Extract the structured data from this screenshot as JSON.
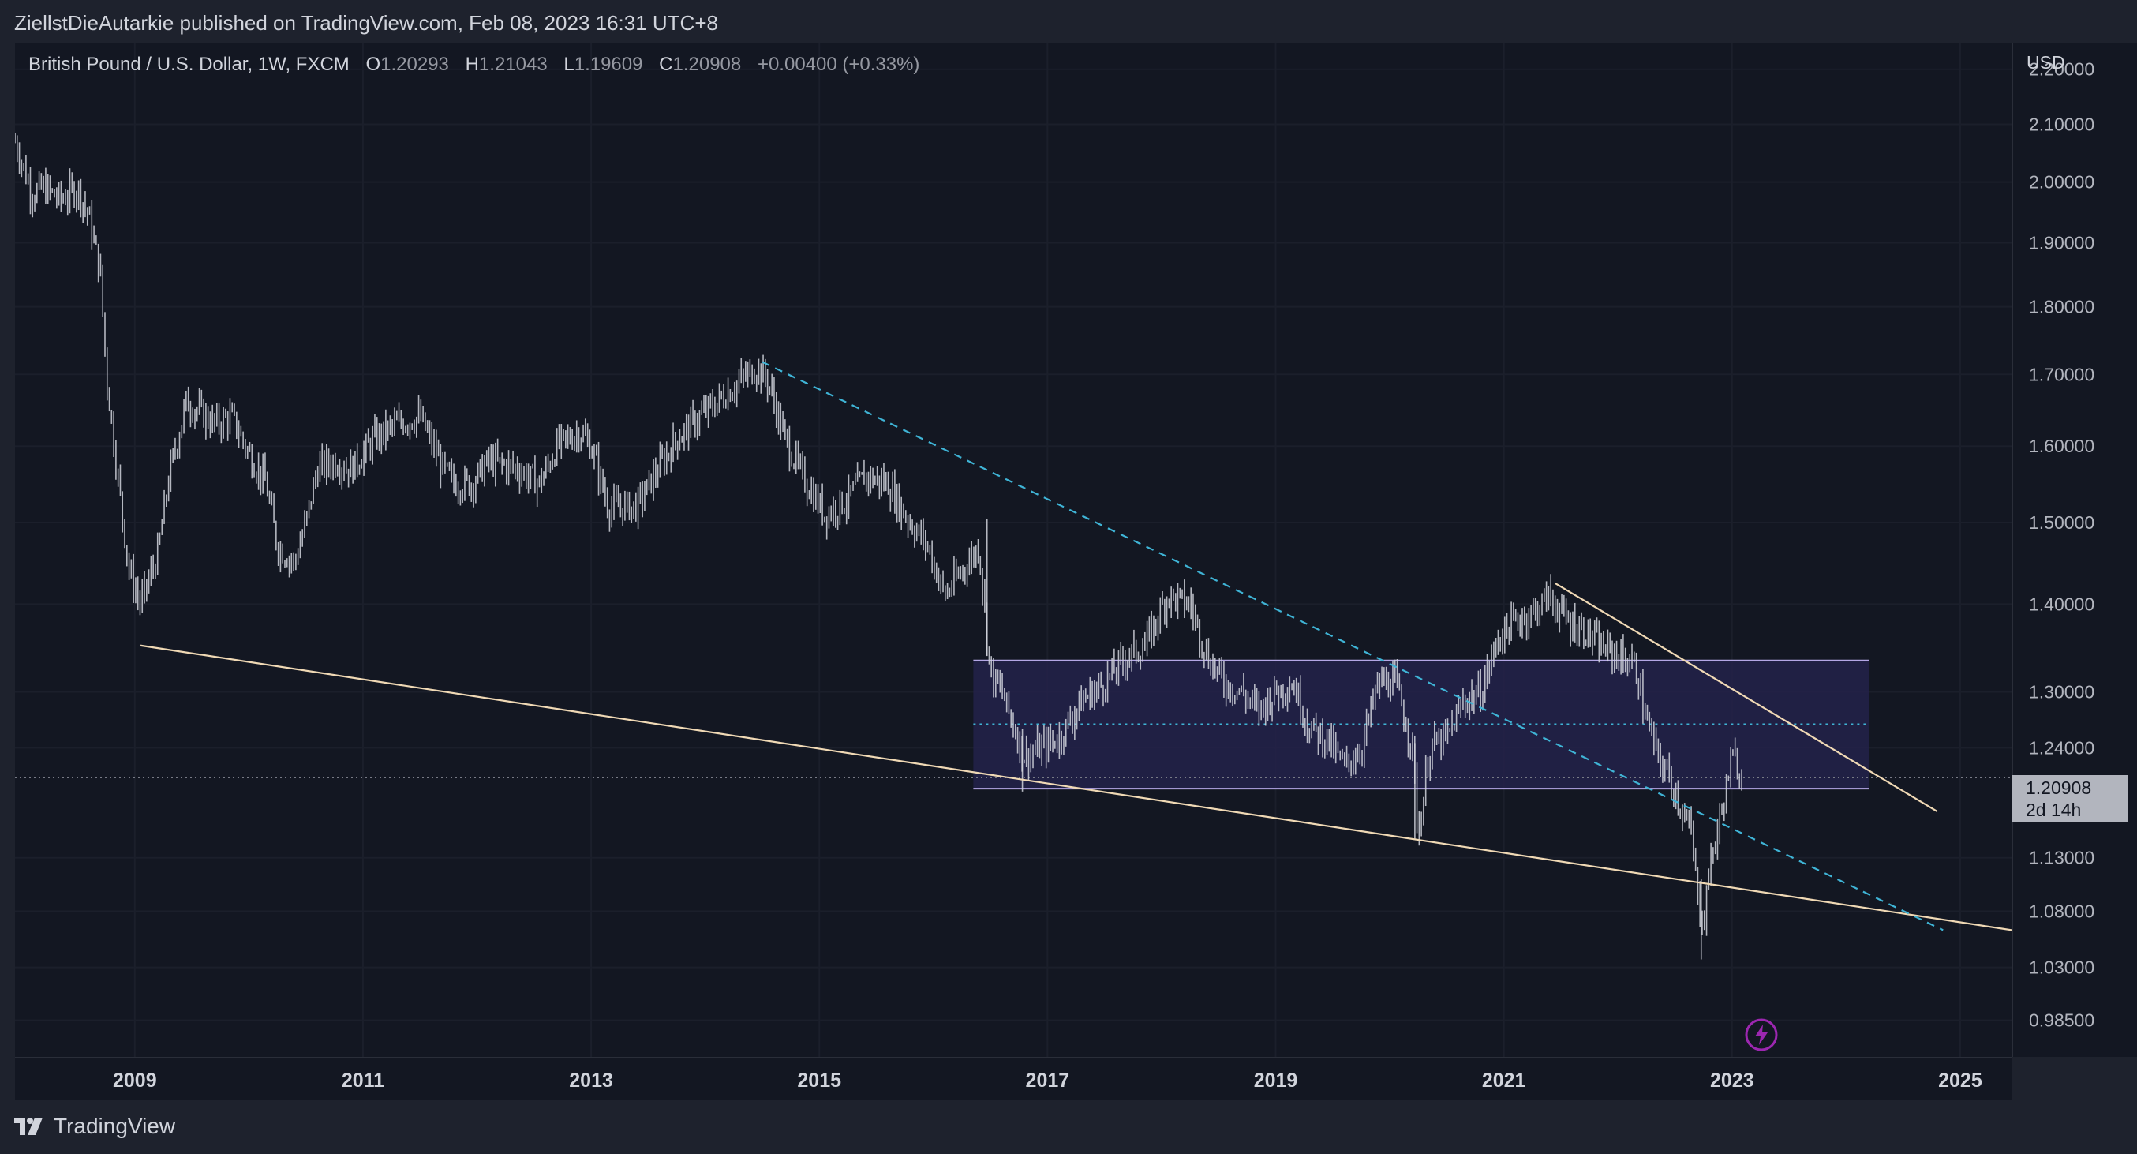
{
  "header": {
    "publisher_line": "ZiellstDieAutarkie published on TradingView.com, Feb 08, 2023 16:31 UTC+8"
  },
  "legend": {
    "symbol": "British Pound / U.S. Dollar, 1W, FXCM",
    "open_label": "O",
    "open": "1.20293",
    "high_label": "H",
    "high": "1.21043",
    "low_label": "L",
    "low": "1.19609",
    "close_label": "C",
    "close": "1.20908",
    "change": "+0.00400 (+0.33%)"
  },
  "price_axis": {
    "currency": "USD",
    "last_price": "1.20908",
    "countdown": "2d 14h"
  },
  "footer": {
    "brand": "TradingView",
    "brand_icon": "tradingview-logo-icon"
  },
  "colors": {
    "background": "#131722",
    "candle": "#d1d4dc",
    "trendline": "#f0d9b5",
    "dashed_trendline": "#3fb4d6",
    "range_box_fill": "#23224a",
    "range_box_border": "#b4a7e6",
    "range_mid": "#3fb4d6"
  },
  "chart_data": {
    "type": "line",
    "scale": "log",
    "xlim": [
      2007.95,
      2025.45
    ],
    "ylim": [
      0.955,
      2.25
    ],
    "x_ticks": [
      "2009",
      "2011",
      "2013",
      "2015",
      "2017",
      "2019",
      "2021",
      "2023",
      "2025"
    ],
    "y_ticks": [
      "2.20000",
      "2.10000",
      "2.00000",
      "1.90000",
      "1.80000",
      "1.70000",
      "1.60000",
      "1.50000",
      "1.40000",
      "1.30000",
      "1.24000",
      "1.13000",
      "1.08000",
      "1.03000",
      "0.98500"
    ],
    "last_price": 1.20908,
    "series": [
      {
        "style": "weekly-bars",
        "x": [
          2007.95,
          2008.1,
          2008.2,
          2008.35,
          2008.5,
          2008.6,
          2008.7,
          2008.75,
          2008.85,
          2008.95,
          2009.05,
          2009.2,
          2009.3,
          2009.45,
          2009.55,
          2009.7,
          2009.85,
          2010.0,
          2010.15,
          2010.25,
          2010.4,
          2010.5,
          2010.6,
          2010.75,
          2010.9,
          2011.1,
          2011.3,
          2011.5,
          2011.7,
          2011.8,
          2011.95,
          2012.1,
          2012.35,
          2012.55,
          2012.7,
          2012.9,
          2013.0,
          2013.15,
          2013.4,
          2013.55,
          2013.75,
          2013.95,
          2014.1,
          2014.3,
          2014.45,
          2014.55,
          2014.7,
          2014.85,
          2015.05,
          2015.25,
          2015.4,
          2015.6,
          2015.75,
          2015.95,
          2016.1,
          2016.25,
          2016.4,
          2016.5,
          2016.6,
          2016.8,
          2016.95,
          2017.1,
          2017.3,
          2017.5,
          2017.7,
          2017.85,
          2018.05,
          2018.25,
          2018.4,
          2018.55,
          2018.7,
          2018.85,
          2019.0,
          2019.15,
          2019.3,
          2019.45,
          2019.6,
          2019.75,
          2019.9,
          2020.05,
          2020.2,
          2020.25,
          2020.35,
          2020.5,
          2020.65,
          2020.8,
          2020.95,
          2021.1,
          2021.25,
          2021.4,
          2021.55,
          2021.7,
          2021.85,
          2022.0,
          2022.15,
          2022.25,
          2022.35,
          2022.45,
          2022.55,
          2022.65,
          2022.7,
          2022.75,
          2022.8,
          2022.9,
          2022.95,
          2023.0,
          2023.05,
          2023.1
        ],
        "values": [
          2.07,
          1.98,
          1.99,
          1.97,
          1.99,
          1.94,
          1.85,
          1.7,
          1.56,
          1.44,
          1.4,
          1.46,
          1.56,
          1.66,
          1.65,
          1.63,
          1.64,
          1.59,
          1.55,
          1.47,
          1.45,
          1.5,
          1.57,
          1.58,
          1.57,
          1.61,
          1.63,
          1.64,
          1.57,
          1.55,
          1.55,
          1.58,
          1.57,
          1.55,
          1.6,
          1.62,
          1.6,
          1.52,
          1.52,
          1.56,
          1.61,
          1.64,
          1.66,
          1.69,
          1.71,
          1.69,
          1.61,
          1.56,
          1.51,
          1.53,
          1.56,
          1.55,
          1.51,
          1.47,
          1.41,
          1.44,
          1.47,
          1.32,
          1.3,
          1.23,
          1.24,
          1.25,
          1.29,
          1.31,
          1.34,
          1.35,
          1.41,
          1.4,
          1.34,
          1.31,
          1.3,
          1.28,
          1.3,
          1.31,
          1.26,
          1.25,
          1.22,
          1.24,
          1.31,
          1.31,
          1.24,
          1.15,
          1.24,
          1.25,
          1.29,
          1.3,
          1.36,
          1.38,
          1.39,
          1.41,
          1.38,
          1.37,
          1.35,
          1.34,
          1.33,
          1.27,
          1.23,
          1.21,
          1.18,
          1.15,
          1.09,
          1.07,
          1.12,
          1.17,
          1.2,
          1.23,
          1.22,
          1.209
        ]
      },
      {
        "style": "trendline-solid",
        "x": [
          2009.05,
          2025.45
        ],
        "values": [
          1.352,
          1.063
        ]
      },
      {
        "style": "trendline-solid",
        "x": [
          2021.45,
          2024.8
        ],
        "values": [
          1.425,
          1.175
        ]
      },
      {
        "style": "trendline-dashed",
        "x": [
          2014.5,
          2024.85
        ],
        "values": [
          1.718,
          1.063
        ]
      },
      {
        "style": "range-box",
        "x": [
          2016.35,
          2024.2
        ],
        "top": 1.335,
        "bottom": 1.198,
        "mid": 1.265
      }
    ]
  }
}
